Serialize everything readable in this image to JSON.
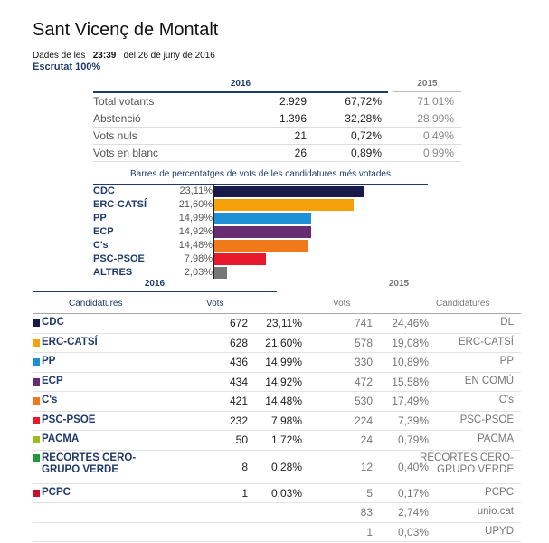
{
  "page": {
    "title": "Sant Vicenç de Montalt",
    "dates_prefix": "Dades de les",
    "time": "23:39",
    "date_suffix": "del 26 de juny de 2016",
    "scrutiny": "Escrutat 100%"
  },
  "summary": {
    "year_2016": "2016",
    "year_2015": "2015",
    "rows": [
      {
        "label": "Total votants",
        "value": "2.929",
        "pct": "67,72%",
        "pct2015": "71,01%"
      },
      {
        "label": "Abstenció",
        "value": "1.396",
        "pct": "32,28%",
        "pct2015": "28,99%"
      },
      {
        "label": "Vots nuls",
        "value": "21",
        "pct": "0,72%",
        "pct2015": "0,49%"
      },
      {
        "label": "Vots en blanc",
        "value": "26",
        "pct": "0,89%",
        "pct2015": "0,99%"
      }
    ]
  },
  "chart_data": {
    "type": "bar",
    "title": "Barres de percentatges de vots de les candidatures més votades",
    "categories": [
      "CDC",
      "ERC-CATSÍ",
      "PP",
      "ECP",
      "C's",
      "PSC-PSOE",
      "ALTRES"
    ],
    "values": [
      23.11,
      21.6,
      14.99,
      14.92,
      14.48,
      7.98,
      2.03
    ],
    "labels": [
      "23,11%",
      "21,60%",
      "14,99%",
      "14,92%",
      "14,48%",
      "7,98%",
      "2,03%"
    ],
    "colors": [
      "#1a1a4a",
      "#f5a20a",
      "#1e90d6",
      "#6a2c70",
      "#f07a1a",
      "#e8192c",
      "#777777"
    ]
  },
  "results": {
    "year_2016": "2016",
    "year_2015": "2015",
    "headers": {
      "candidatures_2016": "Candidatures",
      "vots_2016": "Vots",
      "vots_2015": "Vots",
      "candidatures_2015": "Candidatures"
    },
    "rows": [
      {
        "name": "CDC",
        "color": "#1a1a4a",
        "votes": "672",
        "pct": "23,11%",
        "votes2015": "741",
        "pct2015": "24,46%",
        "name2015": "DL"
      },
      {
        "name": "ERC-CATSÍ",
        "color": "#f5a20a",
        "votes": "628",
        "pct": "21,60%",
        "votes2015": "578",
        "pct2015": "19,08%",
        "name2015": "ERC-CATSÍ"
      },
      {
        "name": "PP",
        "color": "#1e90d6",
        "votes": "436",
        "pct": "14,99%",
        "votes2015": "330",
        "pct2015": "10,89%",
        "name2015": "PP"
      },
      {
        "name": "ECP",
        "color": "#6a2c70",
        "votes": "434",
        "pct": "14,92%",
        "votes2015": "472",
        "pct2015": "15,58%",
        "name2015": "EN COMÚ"
      },
      {
        "name": "C's",
        "color": "#f07a1a",
        "votes": "421",
        "pct": "14,48%",
        "votes2015": "530",
        "pct2015": "17,49%",
        "name2015": "C's"
      },
      {
        "name": "PSC-PSOE",
        "color": "#e8192c",
        "votes": "232",
        "pct": "7,98%",
        "votes2015": "224",
        "pct2015": "7,39%",
        "name2015": "PSC-PSOE"
      },
      {
        "name": "PACMA",
        "color": "#9abf1a",
        "votes": "50",
        "pct": "1,72%",
        "votes2015": "24",
        "pct2015": "0,79%",
        "name2015": "PACMA"
      },
      {
        "name": "RECORTES CERO-\nGRUPO VERDE",
        "color": "#1f9a3a",
        "votes": "8",
        "pct": "0,28%",
        "votes2015": "12",
        "pct2015": "0,40%",
        "name2015": "RECORTES CERO-\nGRUPO VERDE"
      },
      {
        "name": "PCPC",
        "color": "#c8102e",
        "votes": "1",
        "pct": "0,03%",
        "votes2015": "5",
        "pct2015": "0,17%",
        "name2015": "PCPC"
      },
      {
        "name": "",
        "color": "",
        "votes": "",
        "pct": "",
        "votes2015": "83",
        "pct2015": "2,74%",
        "name2015": "unio.cat"
      },
      {
        "name": "",
        "color": "",
        "votes": "",
        "pct": "",
        "votes2015": "1",
        "pct2015": "0,03%",
        "name2015": "UPYD"
      }
    ]
  }
}
